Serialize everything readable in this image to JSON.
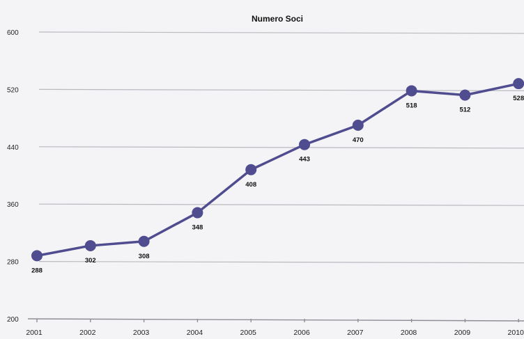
{
  "chart_data": {
    "type": "line",
    "title": "Numero Soci",
    "xlabel": "",
    "ylabel": "",
    "categories": [
      "2001",
      "2002",
      "2003",
      "2004",
      "2005",
      "2006",
      "2007",
      "2008",
      "2009",
      "2010"
    ],
    "series": [
      {
        "values": [
          288,
          302,
          308,
          348,
          408,
          443,
          470,
          518,
          512,
          528
        ],
        "color": "#4f4c8f"
      }
    ],
    "data_labels": [
      "288",
      "302",
      "308",
      "348",
      "408",
      "443",
      "470",
      "518",
      "512",
      "528"
    ],
    "yticks": [
      200,
      280,
      360,
      440,
      520,
      600
    ],
    "ytick_labels": [
      "200",
      "280",
      "360",
      "440",
      "520",
      "600"
    ],
    "ylim": [
      200,
      600
    ],
    "grid": true,
    "legend": "none"
  }
}
